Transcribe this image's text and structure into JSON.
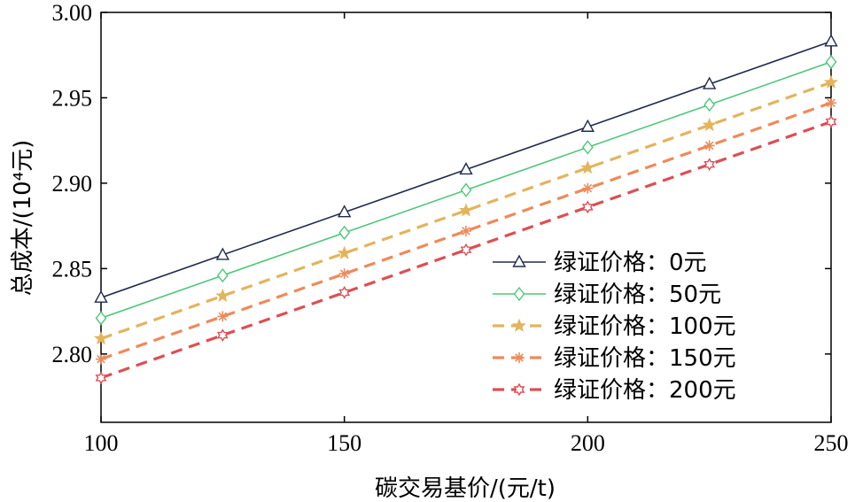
{
  "chart_data": {
    "type": "line",
    "xlabel": "碳交易基价/(元/t)",
    "ylabel": "总成本/(10⁴元)",
    "xlim": [
      100,
      250
    ],
    "ylim": [
      2.76,
      3.0
    ],
    "xticks": [
      "100",
      "150",
      "200",
      "250"
    ],
    "yticks": [
      "2.80",
      "2.85",
      "2.90",
      "2.95",
      "3.00"
    ],
    "x": [
      100,
      125,
      150,
      175,
      200,
      225,
      250
    ],
    "legend_position": "lower-right",
    "grid": false,
    "series": [
      {
        "name": "绿证价格：0元",
        "color": "#1f2b4d",
        "marker": "triangle",
        "dashed": false,
        "values": [
          2.833,
          2.858,
          2.883,
          2.908,
          2.933,
          2.958,
          2.983
        ]
      },
      {
        "name": "绿证价格：50元",
        "color": "#4ec77a",
        "marker": "diamond",
        "dashed": false,
        "values": [
          2.821,
          2.846,
          2.871,
          2.896,
          2.921,
          2.946,
          2.971
        ]
      },
      {
        "name": "绿证价格：100元",
        "color": "#e3b45c",
        "marker": "star",
        "dashed": true,
        "values": [
          2.809,
          2.834,
          2.859,
          2.884,
          2.909,
          2.934,
          2.959
        ]
      },
      {
        "name": "绿证价格：150元",
        "color": "#ee8a5a",
        "marker": "asterisk",
        "dashed": true,
        "values": [
          2.797,
          2.822,
          2.847,
          2.872,
          2.897,
          2.922,
          2.947
        ]
      },
      {
        "name": "绿证价格：200元",
        "color": "#dd4f52",
        "marker": "hexagram",
        "dashed": true,
        "values": [
          2.786,
          2.811,
          2.836,
          2.861,
          2.886,
          2.911,
          2.936
        ]
      }
    ]
  }
}
